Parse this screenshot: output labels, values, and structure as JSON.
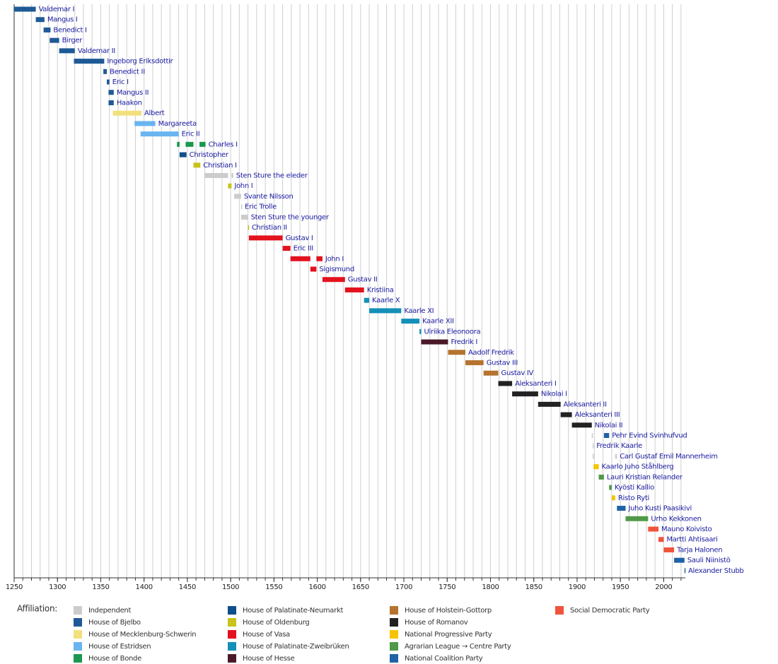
{
  "chart_data": {
    "type": "timeline",
    "xlim": [
      1250,
      2025
    ],
    "xticks": [
      1250,
      1300,
      1350,
      1400,
      1450,
      1500,
      1550,
      1600,
      1650,
      1700,
      1750,
      1800,
      1850,
      1900,
      1950,
      2000
    ],
    "grid_xticks": [
      1250,
      1260,
      1270,
      1280,
      1290,
      1300,
      1310,
      1320,
      1330,
      1340,
      1350,
      1360,
      1370,
      1380,
      1390,
      1400,
      1410,
      1420,
      1430,
      1440,
      1450,
      1460,
      1470,
      1480,
      1490,
      1500,
      1510,
      1520,
      1530,
      1540,
      1550,
      1560,
      1570,
      1580,
      1590,
      1600,
      1610,
      1620,
      1630,
      1640,
      1650,
      1660,
      1670,
      1680,
      1690,
      1700,
      1710,
      1720,
      1730,
      1740,
      1750,
      1760,
      1770,
      1780,
      1790,
      1800,
      1810,
      1820,
      1830,
      1840,
      1850,
      1860,
      1870,
      1880,
      1890,
      1900,
      1910,
      1920,
      1930,
      1940,
      1950,
      1960,
      1970,
      1980,
      1990,
      2000,
      2010,
      2020
    ],
    "grid": true,
    "rows": [
      {
        "name": "Valdemar I",
        "segments": [
          {
            "start": 1250,
            "end": 1275,
            "color": "#1f5a96"
          }
        ]
      },
      {
        "name": "Mangus I",
        "segments": [
          {
            "start": 1275,
            "end": 1285,
            "color": "#1f5a96"
          }
        ]
      },
      {
        "name": "Benedict I",
        "segments": [
          {
            "start": 1284,
            "end": 1292,
            "color": "#1f5a96"
          }
        ]
      },
      {
        "name": "Birger",
        "segments": [
          {
            "start": 1291,
            "end": 1302,
            "color": "#1f5a96"
          }
        ]
      },
      {
        "name": "Valdemar II",
        "segments": [
          {
            "start": 1302,
            "end": 1320,
            "color": "#1f5a96"
          }
        ]
      },
      {
        "name": "Ingeborg Eriksdottir",
        "segments": [
          {
            "start": 1319,
            "end": 1354,
            "color": "#1f5a96"
          }
        ]
      },
      {
        "name": "Benedict II",
        "segments": [
          {
            "start": 1353,
            "end": 1357,
            "color": "#1f5a96"
          }
        ]
      },
      {
        "name": "Eric I",
        "segments": [
          {
            "start": 1357,
            "end": 1360,
            "color": "#1f5a96"
          }
        ]
      },
      {
        "name": "Mangus II",
        "segments": [
          {
            "start": 1359,
            "end": 1365,
            "color": "#1f5a96"
          }
        ]
      },
      {
        "name": "Haakon",
        "segments": [
          {
            "start": 1359,
            "end": 1365,
            "color": "#1f5a96"
          }
        ]
      },
      {
        "name": "Albert",
        "segments": [
          {
            "start": 1364,
            "end": 1397,
            "color": "#f2e07c"
          }
        ]
      },
      {
        "name": "Margareeta",
        "segments": [
          {
            "start": 1389,
            "end": 1413,
            "color": "#6ab4f0"
          }
        ]
      },
      {
        "name": "Eric II",
        "segments": [
          {
            "start": 1396,
            "end": 1440,
            "color": "#6ab4f0"
          }
        ]
      },
      {
        "name": "Charles I",
        "segments": [
          {
            "start": 1438,
            "end": 1441,
            "color": "#1a9850"
          },
          {
            "start": 1448,
            "end": 1457,
            "color": "#1a9850"
          },
          {
            "start": 1464,
            "end": 1471,
            "color": "#1a9850"
          }
        ]
      },
      {
        "name": "Christopher",
        "segments": [
          {
            "start": 1441,
            "end": 1449,
            "color": "#0e4f8a"
          }
        ]
      },
      {
        "name": "Christian I",
        "segments": [
          {
            "start": 1457,
            "end": 1465,
            "color": "#c8c21a"
          }
        ]
      },
      {
        "name": "Sten Sture the eleder",
        "segments": [
          {
            "start": 1470,
            "end": 1497,
            "color": "#cccccc"
          },
          {
            "start": 1501,
            "end": 1503,
            "color": "#cccccc"
          }
        ]
      },
      {
        "name": "John I",
        "segments": [
          {
            "start": 1497,
            "end": 1501,
            "color": "#c8c21a"
          }
        ]
      },
      {
        "name": "Svante Nilsson",
        "segments": [
          {
            "start": 1504,
            "end": 1512,
            "color": "#cccccc"
          }
        ]
      },
      {
        "name": "Eric Trolle",
        "segments": [
          {
            "start": 1512,
            "end": 1513,
            "color": "#cccccc"
          }
        ]
      },
      {
        "name": "Sten Sture the younger",
        "segments": [
          {
            "start": 1512,
            "end": 1520,
            "color": "#cccccc"
          }
        ]
      },
      {
        "name": "Christian II",
        "segments": [
          {
            "start": 1520,
            "end": 1521,
            "color": "#c8c21a"
          }
        ]
      },
      {
        "name": "Gustav I",
        "segments": [
          {
            "start": 1521,
            "end": 1560,
            "color": "#e3121e"
          }
        ]
      },
      {
        "name": "Eric III",
        "segments": [
          {
            "start": 1560,
            "end": 1569,
            "color": "#e3121e"
          }
        ]
      },
      {
        "name": "John I",
        "segments": [
          {
            "start": 1569,
            "end": 1592,
            "color": "#e3121e"
          },
          {
            "start": 1599,
            "end": 1606,
            "color": "#e3121e"
          }
        ]
      },
      {
        "name": "Sigismund",
        "segments": [
          {
            "start": 1592,
            "end": 1599,
            "color": "#e3121e"
          }
        ]
      },
      {
        "name": "Gustav II",
        "segments": [
          {
            "start": 1606,
            "end": 1632,
            "color": "#e3121e"
          }
        ]
      },
      {
        "name": "Kristiina",
        "segments": [
          {
            "start": 1632,
            "end": 1654,
            "color": "#e3121e"
          }
        ]
      },
      {
        "name": "Kaarle X",
        "segments": [
          {
            "start": 1654,
            "end": 1660,
            "color": "#1590b8"
          }
        ]
      },
      {
        "name": "Kaarle XI",
        "segments": [
          {
            "start": 1660,
            "end": 1697,
            "color": "#1590b8"
          }
        ]
      },
      {
        "name": "Kaarle XII",
        "segments": [
          {
            "start": 1697,
            "end": 1718,
            "color": "#1590b8"
          }
        ]
      },
      {
        "name": "Ulriika Eleonoora",
        "segments": [
          {
            "start": 1718,
            "end": 1720,
            "color": "#1590b8"
          }
        ]
      },
      {
        "name": "Fredrik I",
        "segments": [
          {
            "start": 1720,
            "end": 1751,
            "color": "#4a1a28"
          }
        ]
      },
      {
        "name": "Aadolf Fredrik",
        "segments": [
          {
            "start": 1751,
            "end": 1771,
            "color": "#b5732e"
          }
        ]
      },
      {
        "name": "Gustav III",
        "segments": [
          {
            "start": 1771,
            "end": 1792,
            "color": "#b5732e"
          }
        ]
      },
      {
        "name": "Gustav IV",
        "segments": [
          {
            "start": 1792,
            "end": 1809,
            "color": "#b5732e"
          }
        ]
      },
      {
        "name": "Aleksanteri I",
        "segments": [
          {
            "start": 1809,
            "end": 1825,
            "color": "#222222"
          }
        ]
      },
      {
        "name": "Nikolai I",
        "segments": [
          {
            "start": 1825,
            "end": 1855,
            "color": "#222222"
          }
        ]
      },
      {
        "name": "Aleksanteri II",
        "segments": [
          {
            "start": 1855,
            "end": 1881,
            "color": "#222222"
          }
        ]
      },
      {
        "name": "Aleksanteri III",
        "segments": [
          {
            "start": 1881,
            "end": 1894,
            "color": "#222222"
          }
        ]
      },
      {
        "name": "Nikolai II",
        "segments": [
          {
            "start": 1894,
            "end": 1917,
            "color": "#222222"
          }
        ]
      },
      {
        "name": "Pehr Evind Svinhufvud",
        "segments": [
          {
            "start": 1917,
            "end": 1918,
            "color": "#cccccc"
          },
          {
            "start": 1931,
            "end": 1937,
            "color": "#1f62a8"
          }
        ]
      },
      {
        "name": "Fredrik Kaarle",
        "segments": [
          {
            "start": 1918,
            "end": 1919,
            "color": "#cccccc"
          }
        ]
      },
      {
        "name": "Carl Gustaf Emil Mannerheim",
        "segments": [
          {
            "start": 1918,
            "end": 1919,
            "color": "#cccccc"
          },
          {
            "start": 1944,
            "end": 1946,
            "color": "#cccccc"
          }
        ]
      },
      {
        "name": "Kaarlo Juho Ståhlberg",
        "segments": [
          {
            "start": 1919,
            "end": 1925,
            "color": "#f5c400"
          }
        ]
      },
      {
        "name": "Lauri Kristian Relander",
        "segments": [
          {
            "start": 1925,
            "end": 1931,
            "color": "#4f9a48"
          }
        ]
      },
      {
        "name": "Kyösti Kallio",
        "segments": [
          {
            "start": 1937,
            "end": 1940,
            "color": "#4f9a48"
          }
        ]
      },
      {
        "name": "Risto Ryti",
        "segments": [
          {
            "start": 1940,
            "end": 1944,
            "color": "#f5c400"
          }
        ]
      },
      {
        "name": "Juho Kusti Paasikivi",
        "segments": [
          {
            "start": 1946,
            "end": 1956,
            "color": "#1f62a8"
          }
        ]
      },
      {
        "name": "Urho Kekkonen",
        "segments": [
          {
            "start": 1956,
            "end": 1982,
            "color": "#4f9a48"
          }
        ]
      },
      {
        "name": "Mauno Koivisto",
        "segments": [
          {
            "start": 1982,
            "end": 1994,
            "color": "#f0543c"
          }
        ]
      },
      {
        "name": "Martti Ahtisaari",
        "segments": [
          {
            "start": 1994,
            "end": 2000,
            "color": "#f0543c"
          }
        ]
      },
      {
        "name": "Tarja Halonen",
        "segments": [
          {
            "start": 2000,
            "end": 2012,
            "color": "#f0543c"
          }
        ]
      },
      {
        "name": "Sauli Niinistö",
        "segments": [
          {
            "start": 2012,
            "end": 2024,
            "color": "#1f62a8"
          }
        ]
      },
      {
        "name": "Alexander Stubb",
        "segments": [
          {
            "start": 2024,
            "end": 2025,
            "color": "#1f62a8"
          }
        ]
      }
    ],
    "legend_title": "Affiliation:",
    "legend": [
      {
        "name": "Independent",
        "color": "#cccccc"
      },
      {
        "name": "House of Bjelbo",
        "color": "#1f5a96"
      },
      {
        "name": "House of Mecklenburg-Schwerin",
        "color": "#f2e07c"
      },
      {
        "name": "House of Estridsen",
        "color": "#6ab4f0"
      },
      {
        "name": "House of Bonde",
        "color": "#1a9850"
      },
      {
        "name": "House of Palatinate-Neumarkt",
        "color": "#0e4f8a"
      },
      {
        "name": "House of Oldenburg",
        "color": "#c8c21a"
      },
      {
        "name": "House of Vasa",
        "color": "#e3121e"
      },
      {
        "name": "House of Palatinate-Zweibrüken",
        "color": "#1590b8"
      },
      {
        "name": "House of Hesse",
        "color": "#4a1a28"
      },
      {
        "name": "House of Holstein-Gottorp",
        "color": "#b5732e"
      },
      {
        "name": "House of Romanov",
        "color": "#222222"
      },
      {
        "name": "National Progressive Party",
        "color": "#f5c400"
      },
      {
        "name": "Agrarian League → Centre Party",
        "color": "#4f9a48"
      },
      {
        "name": "National Coalition Party",
        "color": "#1f62a8"
      },
      {
        "name": "Social Democratic Party",
        "color": "#f0543c"
      }
    ]
  }
}
